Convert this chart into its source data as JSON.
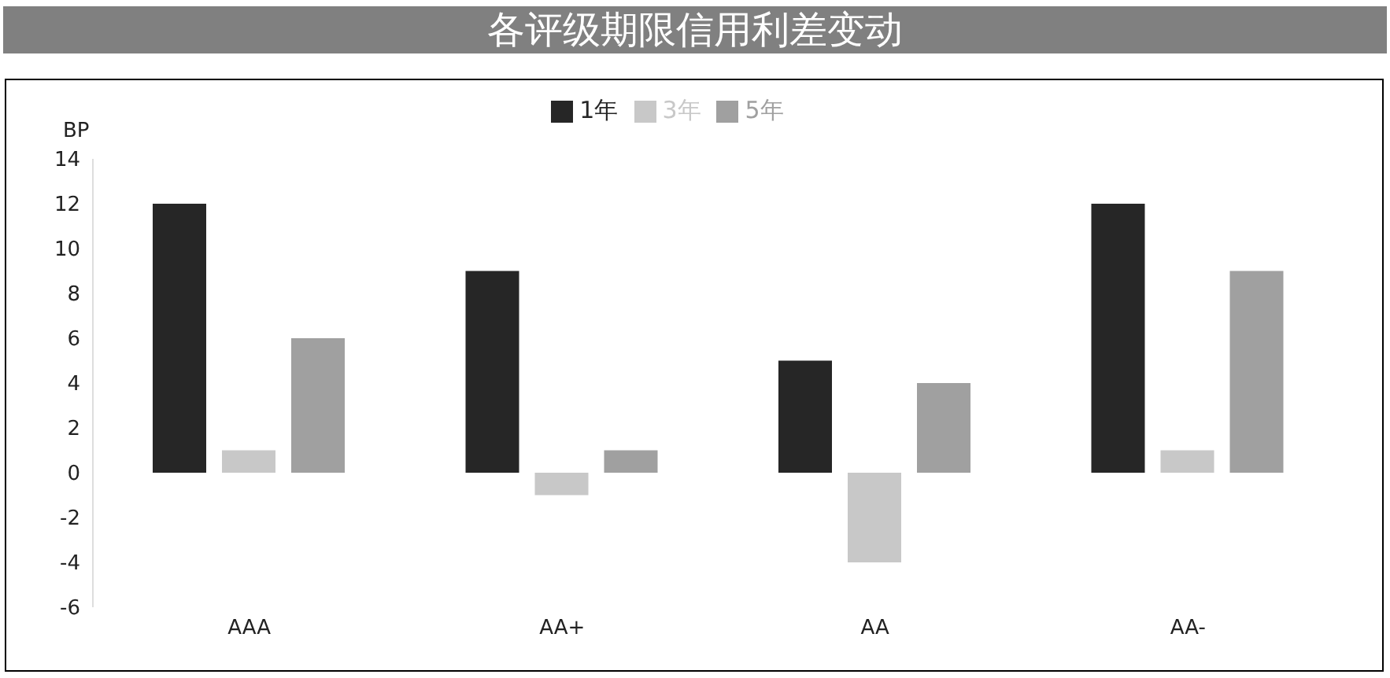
{
  "chart_data": {
    "type": "bar",
    "title": "各评级期限信用利差变动",
    "ylabel": "BP",
    "categories": [
      "AAA",
      "AA+",
      "AA",
      "AA-"
    ],
    "series": [
      {
        "name": "1年",
        "color": "#262626",
        "values": [
          12,
          9,
          5,
          12
        ]
      },
      {
        "name": "3年",
        "color": "#c8c8c8",
        "values": [
          1,
          -1,
          -4,
          1
        ]
      },
      {
        "name": "5年",
        "color": "#a0a0a0",
        "values": [
          6,
          1,
          4,
          9
        ]
      }
    ],
    "ylim": [
      -6,
      14
    ],
    "yticks": [
      -6,
      -4,
      -2,
      0,
      2,
      4,
      6,
      8,
      10,
      12,
      14
    ],
    "legend": "top"
  }
}
